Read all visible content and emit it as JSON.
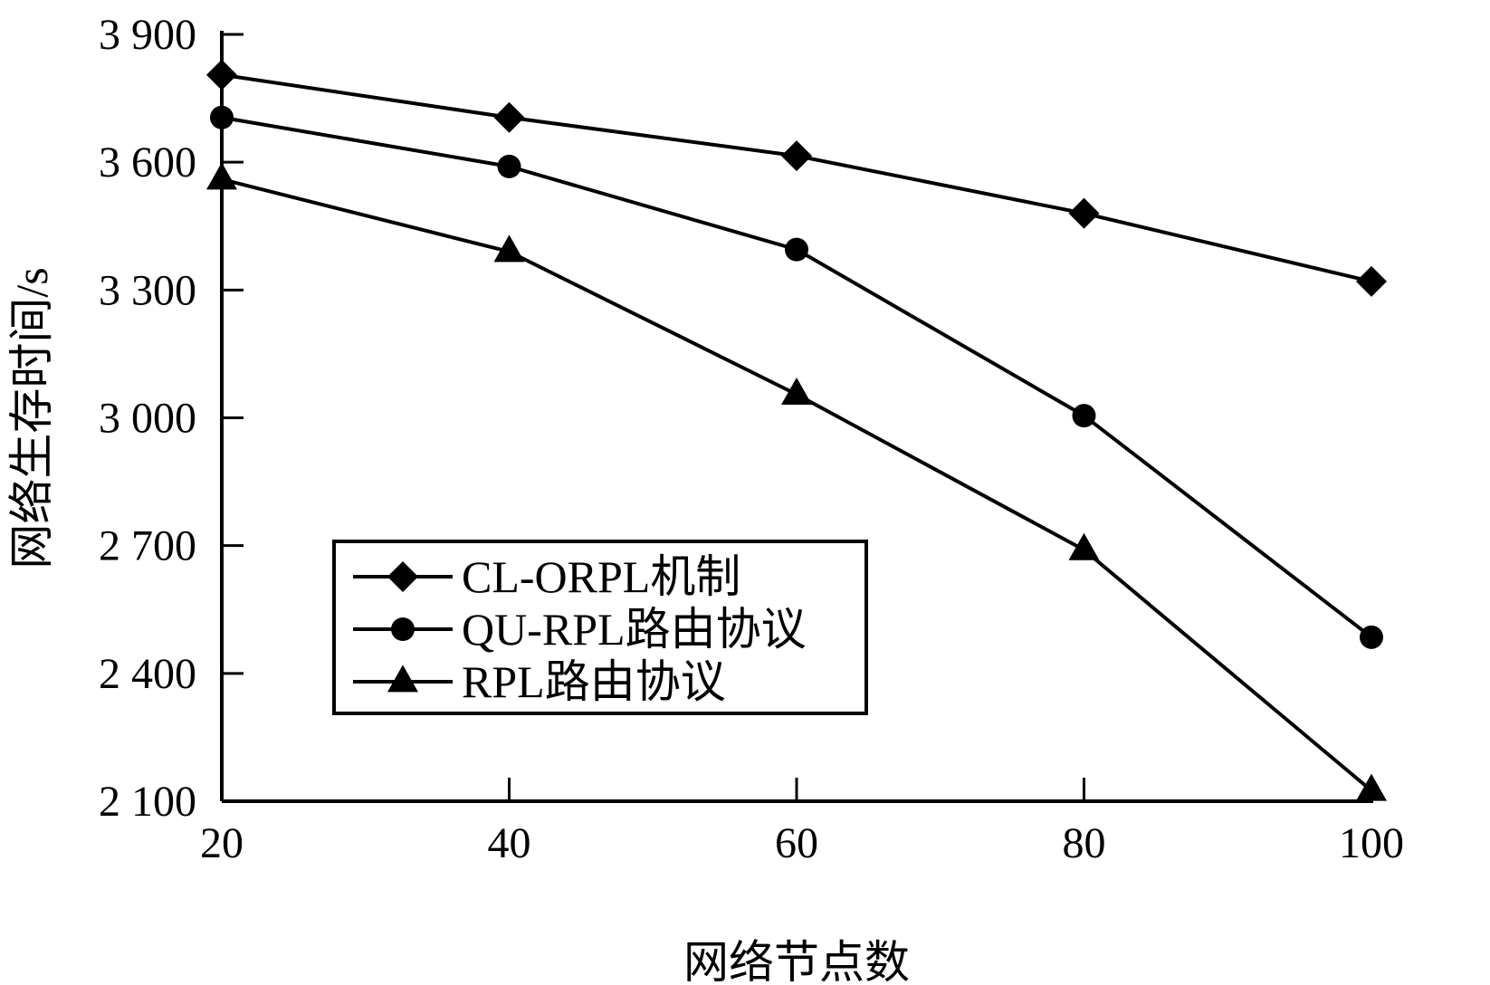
{
  "chart_data": {
    "type": "line",
    "xlabel": "网络节点数",
    "ylabel": "网络生存时间/s",
    "xlim": [
      20,
      100
    ],
    "ylim": [
      2100,
      3900
    ],
    "x_ticks": [
      20,
      40,
      60,
      80,
      100
    ],
    "x_tick_labels": [
      "20",
      "40",
      "60",
      "80",
      "100"
    ],
    "y_ticks": [
      2100,
      2400,
      2700,
      3000,
      3300,
      3600,
      3900
    ],
    "y_tick_labels": [
      "2 100",
      "2 400",
      "2 700",
      "3 000",
      "3 300",
      "3 600",
      "3 900"
    ],
    "grid": false,
    "legend_position": "lower-left",
    "x": [
      20,
      40,
      60,
      80,
      100
    ],
    "series": [
      {
        "name": "CL-ORPL机制",
        "marker": "diamond",
        "color": "#000000",
        "values": [
          3805,
          3705,
          3615,
          3480,
          3320
        ]
      },
      {
        "name": "QU-RPL路由协议",
        "marker": "circle",
        "color": "#000000",
        "values": [
          3705,
          3590,
          3395,
          3005,
          2485
        ]
      },
      {
        "name": "RPL路由协议",
        "marker": "triangle",
        "color": "#000000",
        "values": [
          3560,
          3390,
          3055,
          2690,
          2125
        ]
      }
    ]
  }
}
